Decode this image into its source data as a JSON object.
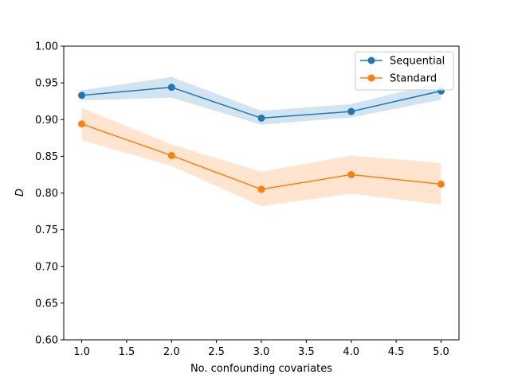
{
  "chart_data": {
    "type": "line",
    "title": "",
    "xlabel": "No. confounding covariates",
    "ylabel": "D",
    "xlim": [
      0.8,
      5.2
    ],
    "ylim": [
      0.6,
      1.0
    ],
    "xticks": [
      1.0,
      1.5,
      2.0,
      2.5,
      3.0,
      3.5,
      4.0,
      4.5,
      5.0
    ],
    "xtick_labels": [
      "1.0",
      "1.5",
      "2.0",
      "2.5",
      "3.0",
      "3.5",
      "4.0",
      "4.5",
      "5.0"
    ],
    "yticks": [
      0.6,
      0.65,
      0.7,
      0.75,
      0.8,
      0.85,
      0.9,
      0.95,
      1.0
    ],
    "ytick_labels": [
      "0.60",
      "0.65",
      "0.70",
      "0.75",
      "0.80",
      "0.85",
      "0.90",
      "0.95",
      "1.00"
    ],
    "grid": false,
    "legend": "top-right",
    "x": [
      1,
      2,
      3,
      4,
      5
    ],
    "series": [
      {
        "name": "Sequential",
        "color": "#1f77b4",
        "fill_color": "#1f77b4",
        "values": [
          0.933,
          0.944,
          0.902,
          0.911,
          0.939
        ],
        "lower": [
          0.926,
          0.93,
          0.893,
          0.903,
          0.927
        ],
        "upper": [
          0.94,
          0.958,
          0.912,
          0.921,
          0.951
        ]
      },
      {
        "name": "Standard",
        "color": "#ff7f0e",
        "fill_color": "#ff7f0e",
        "values": [
          0.894,
          0.851,
          0.805,
          0.825,
          0.812
        ],
        "lower": [
          0.872,
          0.837,
          0.782,
          0.799,
          0.784
        ],
        "upper": [
          0.916,
          0.866,
          0.829,
          0.851,
          0.841
        ]
      }
    ]
  }
}
